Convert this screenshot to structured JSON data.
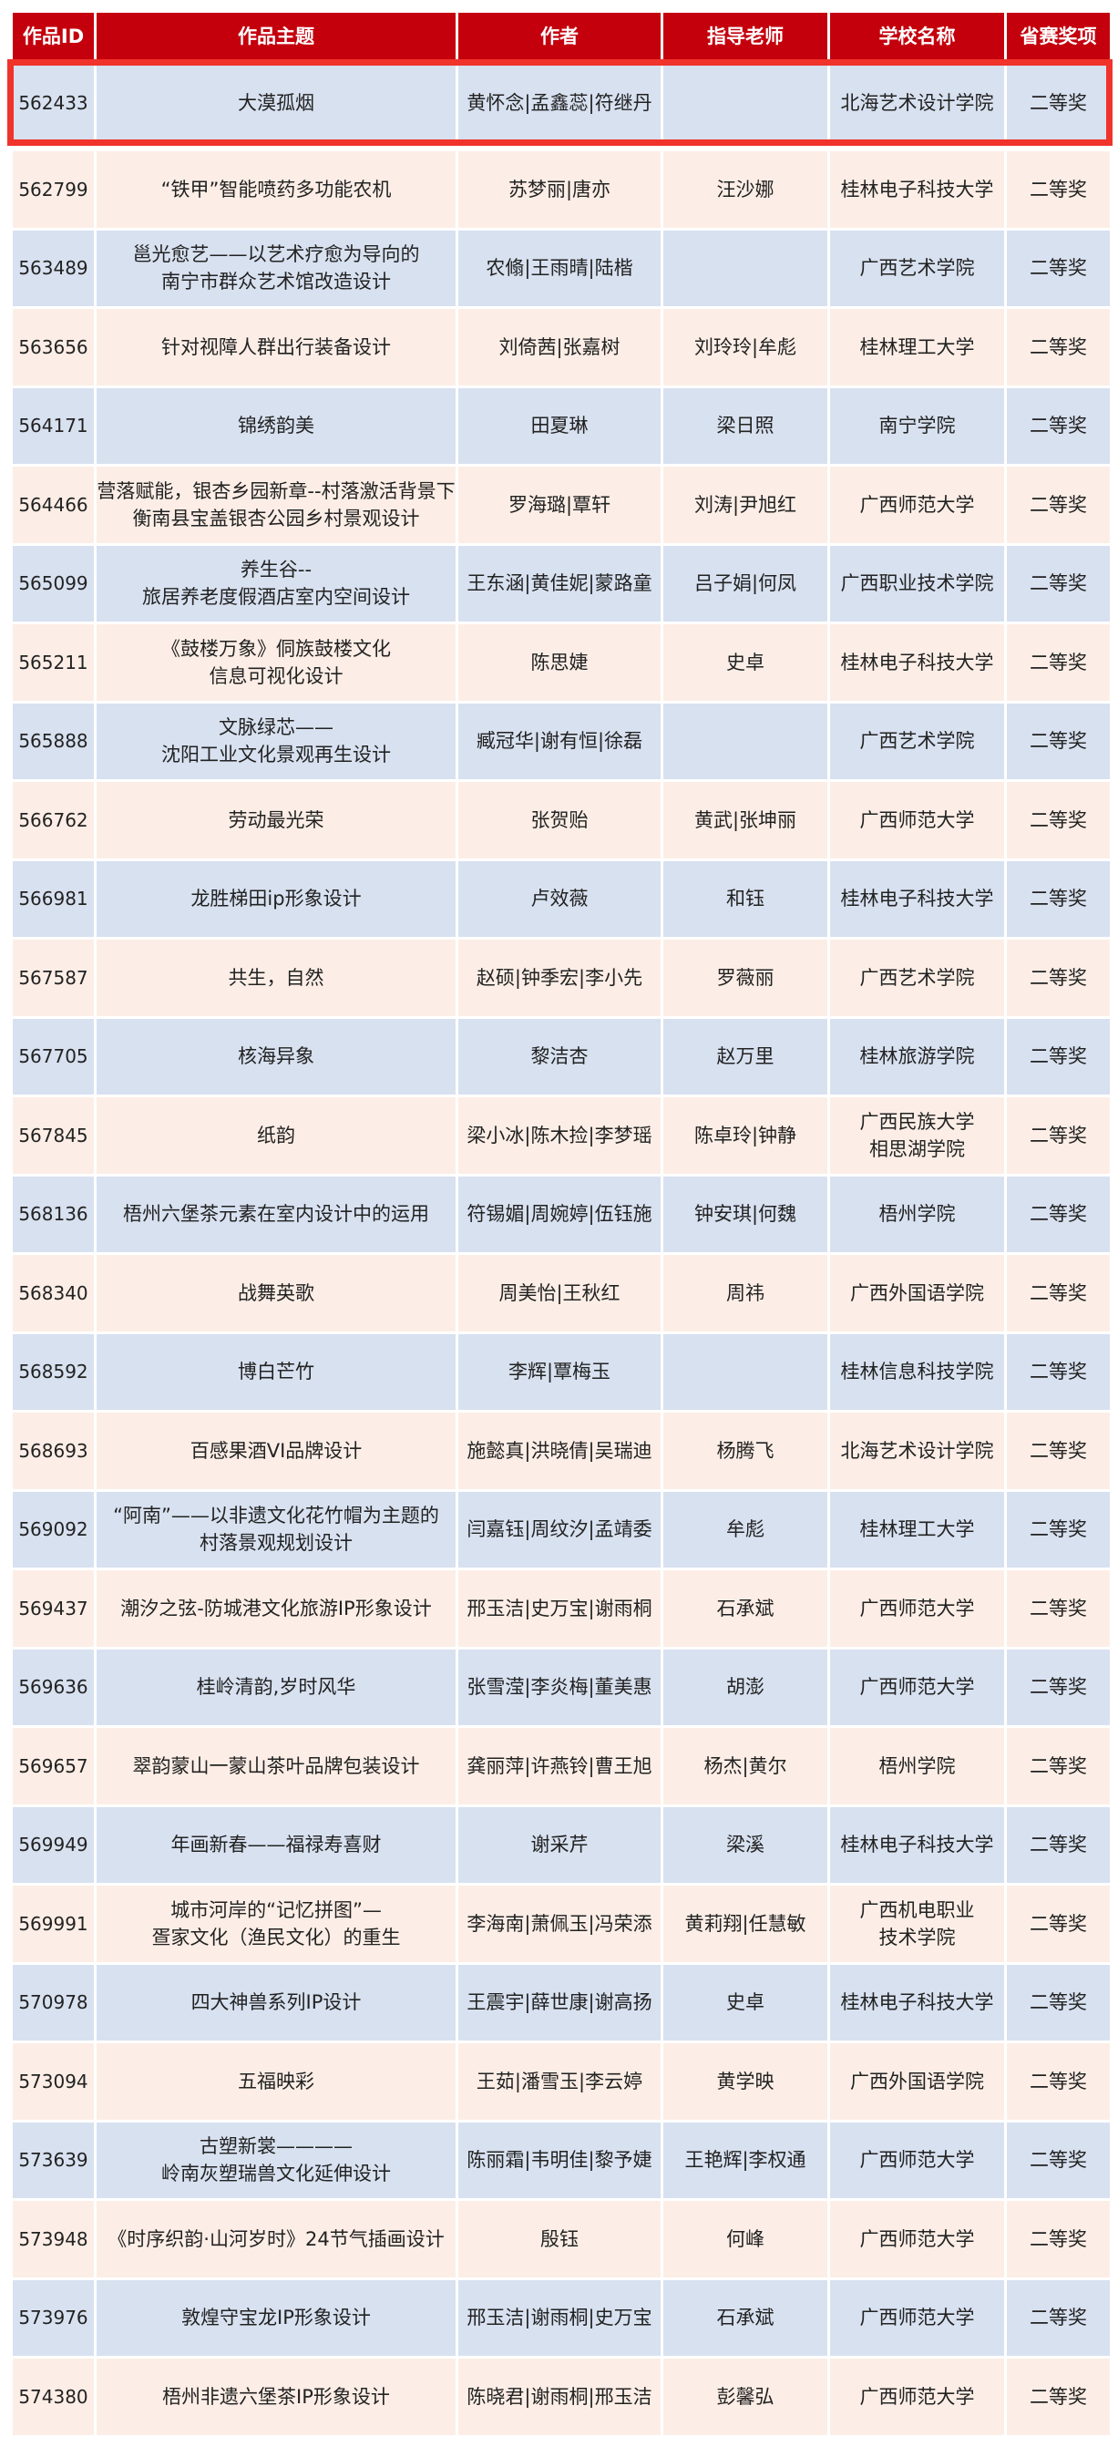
{
  "colors": {
    "header": "#c4000d",
    "row_blue": "#d8e1f0",
    "row_peach": "#fceee6",
    "highlight_border": "#f0332b"
  },
  "headers": [
    "作品ID",
    "作品主题",
    "作者",
    "指导老师",
    "学校名称",
    "省赛奖项"
  ],
  "rows": [
    {
      "id": "562433",
      "title": "大漠孤烟",
      "authors": "黄怀念|孟鑫蕊|符继丹",
      "advisor": "",
      "school": "北海艺术设计学院",
      "award": "二等奖",
      "highlighted": true
    },
    {
      "id": "562799",
      "title": "“铁甲”智能喷药多功能农机",
      "authors": "苏梦丽|唐亦",
      "advisor": "汪沙娜",
      "school": "桂林电子科技大学",
      "award": "二等奖"
    },
    {
      "id": "563489",
      "title": "邕光愈艺——以艺术疗愈为导向的\n南宁市群众艺术馆改造设计",
      "authors": "农翛|王雨晴|陆楷",
      "advisor": "",
      "school": "广西艺术学院",
      "award": "二等奖"
    },
    {
      "id": "563656",
      "title": "针对视障人群出行装备设计",
      "authors": "刘倚茜|张嘉树",
      "advisor": "刘玲玲|牟彪",
      "school": "桂林理工大学",
      "award": "二等奖"
    },
    {
      "id": "564171",
      "title": "锦绣韵美",
      "authors": "田夏琳",
      "advisor": "梁日照",
      "school": "南宁学院",
      "award": "二等奖"
    },
    {
      "id": "564466",
      "title": "营落赋能，银杏乡园新章--村落激活背景下\n衡南县宝盖银杏公园乡村景观设计",
      "authors": "罗海璐|覃轩",
      "advisor": "刘涛|尹旭红",
      "school": "广西师范大学",
      "award": "二等奖"
    },
    {
      "id": "565099",
      "title": "养生谷--\n旅居养老度假酒店室内空间设计",
      "authors": "王东涵|黄佳妮|蒙路童",
      "advisor": "吕子娟|何凤",
      "school": "广西职业技术学院",
      "award": "二等奖"
    },
    {
      "id": "565211",
      "title": "《鼓楼万象》侗族鼓楼文化\n信息可视化设计",
      "authors": "陈思婕",
      "advisor": "史卓",
      "school": "桂林电子科技大学",
      "award": "二等奖"
    },
    {
      "id": "565888",
      "title": "文脉绿芯——\n沈阳工业文化景观再生设计",
      "authors": "臧冠华|谢有恒|徐磊",
      "advisor": "",
      "school": "广西艺术学院",
      "award": "二等奖"
    },
    {
      "id": "566762",
      "title": "劳动最光荣",
      "authors": "张贺贻",
      "advisor": "黄武|张坤丽",
      "school": "广西师范大学",
      "award": "二等奖"
    },
    {
      "id": "566981",
      "title": "龙胜梯田ip形象设计",
      "authors": "卢效薇",
      "advisor": "和钰",
      "school": "桂林电子科技大学",
      "award": "二等奖"
    },
    {
      "id": "567587",
      "title": "共生，自然",
      "authors": "赵硕|钟季宏|李小先",
      "advisor": "罗薇丽",
      "school": "广西艺术学院",
      "award": "二等奖"
    },
    {
      "id": "567705",
      "title": "核海异象",
      "authors": "黎洁杏",
      "advisor": "赵万里",
      "school": "桂林旅游学院",
      "award": "二等奖"
    },
    {
      "id": "567845",
      "title": "纸韵",
      "authors": "梁小冰|陈木捡|李梦瑶",
      "advisor": "陈卓玲|钟静",
      "school": "广西民族大学\n相思湖学院",
      "award": "二等奖"
    },
    {
      "id": "568136",
      "title": "梧州六堡茶元素在室内设计中的运用",
      "authors": "符锡媚|周婉婷|伍钰施",
      "advisor": "钟安琪|何魏",
      "school": "梧州学院",
      "award": "二等奖"
    },
    {
      "id": "568340",
      "title": "战舞英歌",
      "authors": "周美怡|王秋红",
      "advisor": "周祎",
      "school": "广西外国语学院",
      "award": "二等奖"
    },
    {
      "id": "568592",
      "title": "博白芒竹",
      "authors": "李辉|覃梅玉",
      "advisor": "",
      "school": "桂林信息科技学院",
      "award": "二等奖"
    },
    {
      "id": "568693",
      "title": "百感果酒VI品牌设计",
      "authors": "施懿真|洪晓倩|吴瑞迪",
      "advisor": "杨腾飞",
      "school": "北海艺术设计学院",
      "award": "二等奖"
    },
    {
      "id": "569092",
      "title": "“阿南”——以非遗文化花竹帽为主题的\n村落景观规划设计",
      "authors": "闫嘉钰|周纹汐|孟靖委",
      "advisor": "牟彪",
      "school": "桂林理工大学",
      "award": "二等奖"
    },
    {
      "id": "569437",
      "title": "潮汐之弦-防城港文化旅游IP形象设计",
      "authors": "邢玉洁|史万宝|谢雨桐",
      "advisor": "石承斌",
      "school": "广西师范大学",
      "award": "二等奖"
    },
    {
      "id": "569636",
      "title": "桂岭清韵,岁时风华",
      "authors": "张雪滢|李炎梅|董美惠",
      "advisor": "胡澎",
      "school": "广西师范大学",
      "award": "二等奖"
    },
    {
      "id": "569657",
      "title": "翠韵蒙山一蒙山茶叶品牌包装设计",
      "authors": "龚丽萍|许燕铃|曹王旭",
      "advisor": "杨杰|黄尔",
      "school": "梧州学院",
      "award": "二等奖"
    },
    {
      "id": "569949",
      "title": "年画新春——福禄寿喜财",
      "authors": "谢采芹",
      "advisor": "梁溪",
      "school": "桂林电子科技大学",
      "award": "二等奖"
    },
    {
      "id": "569991",
      "title": "城市河岸的“记忆拼图”—\n疍家文化（渔民文化）的重生",
      "authors": "李海南|萧佩玉|冯荣添",
      "advisor": "黄莉翔|任慧敏",
      "school": "广西机电职业\n技术学院",
      "award": "二等奖"
    },
    {
      "id": "570978",
      "title": "四大神兽系列IP设计",
      "authors": "王震宇|薛世康|谢高扬",
      "advisor": "史卓",
      "school": "桂林电子科技大学",
      "award": "二等奖"
    },
    {
      "id": "573094",
      "title": "五福映彩",
      "authors": "王茹|潘雪玉|李云婷",
      "advisor": "黄学映",
      "school": "广西外国语学院",
      "award": "二等奖"
    },
    {
      "id": "573639",
      "title": "古塑新裳————\n岭南灰塑瑞兽文化延伸设计",
      "authors": "陈丽霜|韦明佳|黎予婕",
      "advisor": "王艳辉|李权通",
      "school": "广西师范大学",
      "award": "二等奖"
    },
    {
      "id": "573948",
      "title": "《时序织韵·山河岁时》24节气插画设计",
      "authors": "殷钰",
      "advisor": "何峰",
      "school": "广西师范大学",
      "award": "二等奖"
    },
    {
      "id": "573976",
      "title": "敦煌守宝龙IP形象设计",
      "authors": "邢玉洁|谢雨桐|史万宝",
      "advisor": "石承斌",
      "school": "广西师范大学",
      "award": "二等奖"
    },
    {
      "id": "574380",
      "title": "梧州非遗六堡茶IP形象设计",
      "authors": "陈晓君|谢雨桐|邢玉洁",
      "advisor": "彭馨弘",
      "school": "广西师范大学",
      "award": "二等奖"
    }
  ]
}
